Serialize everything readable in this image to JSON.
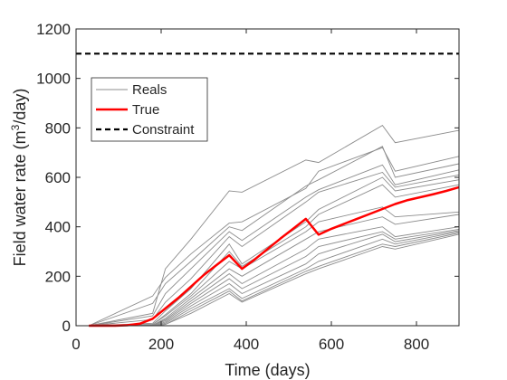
{
  "chart_data": {
    "type": "line",
    "xlabel": "Time (days)",
    "ylabel": {
      "prefix": "Field water rate (m",
      "superscript": "3",
      "suffix": "/day)"
    },
    "xlim": [
      0,
      900
    ],
    "ylim": [
      0,
      1200
    ],
    "xticks": [
      0,
      200,
      400,
      600,
      800
    ],
    "yticks": [
      0,
      200,
      400,
      600,
      800,
      1000,
      1200
    ],
    "grid": false,
    "legend": {
      "position": "top-left",
      "entries": [
        {
          "name": "Reals",
          "color": "#8c8c8c",
          "style": "solid"
        },
        {
          "name": "True",
          "color": "#ff0000",
          "style": "solid"
        },
        {
          "name": "Constraint",
          "color": "#000000",
          "style": "dashed"
        }
      ]
    },
    "constraint": {
      "name": "Constraint",
      "y": 1100,
      "color": "#000000"
    },
    "true_series": {
      "name": "True",
      "color": "#ff0000",
      "x": [
        30,
        60,
        90,
        120,
        150,
        180,
        210,
        240,
        270,
        300,
        330,
        360,
        390,
        420,
        450,
        480,
        510,
        540,
        570,
        600,
        630,
        660,
        690,
        720,
        750,
        780,
        810,
        840,
        870,
        900
      ],
      "y": [
        0,
        0,
        0,
        2,
        8,
        28,
        70,
        112,
        158,
        205,
        245,
        285,
        230,
        268,
        310,
        352,
        392,
        432,
        368,
        392,
        412,
        432,
        452,
        472,
        492,
        508,
        520,
        532,
        545,
        560
      ]
    },
    "reals_color": "#8c8c8c",
    "reals": [
      {
        "x": [
          30,
          180,
          210,
          270,
          360,
          390,
          540,
          570,
          720,
          750,
          900
        ],
        "y": [
          0,
          50,
          230,
          350,
          545,
          540,
          670,
          660,
          810,
          740,
          790
        ]
      },
      {
        "x": [
          30,
          180,
          210,
          270,
          360,
          390,
          540,
          570,
          720,
          750,
          900
        ],
        "y": [
          0,
          120,
          195,
          290,
          415,
          420,
          555,
          625,
          720,
          625,
          685
        ]
      },
      {
        "x": [
          30,
          180,
          210,
          270,
          360,
          390,
          540,
          570,
          720,
          750,
          900
        ],
        "y": [
          0,
          90,
          170,
          260,
          400,
          385,
          565,
          590,
          725,
          600,
          655
        ]
      },
      {
        "x": [
          30,
          180,
          210,
          270,
          360,
          390,
          540,
          570,
          720,
          750,
          900
        ],
        "y": [
          0,
          40,
          130,
          230,
          380,
          345,
          520,
          550,
          650,
          570,
          630
        ]
      },
      {
        "x": [
          30,
          180,
          210,
          270,
          360,
          390,
          540,
          570,
          720,
          750,
          900
        ],
        "y": [
          0,
          25,
          95,
          190,
          360,
          320,
          500,
          540,
          620,
          560,
          610
        ]
      },
      {
        "x": [
          30,
          180,
          210,
          270,
          360,
          390,
          540,
          570,
          720,
          750,
          900
        ],
        "y": [
          0,
          10,
          60,
          150,
          330,
          250,
          420,
          470,
          600,
          545,
          590
        ]
      },
      {
        "x": [
          30,
          180,
          210,
          270,
          360,
          390,
          540,
          570,
          720,
          750,
          900
        ],
        "y": [
          0,
          5,
          45,
          130,
          300,
          240,
          400,
          450,
          570,
          520,
          570
        ]
      },
      {
        "x": [
          30,
          180,
          210,
          270,
          360,
          390,
          540,
          570,
          720,
          750,
          900
        ],
        "y": [
          0,
          5,
          40,
          120,
          260,
          230,
          380,
          420,
          480,
          440,
          460
        ]
      },
      {
        "x": [
          30,
          180,
          210,
          270,
          360,
          390,
          540,
          570,
          720,
          750,
          900
        ],
        "y": [
          0,
          2,
          30,
          110,
          230,
          200,
          350,
          380,
          440,
          410,
          450
        ]
      },
      {
        "x": [
          30,
          180,
          210,
          270,
          360,
          390,
          540,
          570,
          720,
          750,
          900
        ],
        "y": [
          0,
          2,
          25,
          100,
          210,
          170,
          310,
          350,
          400,
          360,
          400
        ]
      },
      {
        "x": [
          30,
          180,
          210,
          270,
          360,
          390,
          540,
          570,
          720,
          750,
          900
        ],
        "y": [
          0,
          1,
          20,
          90,
          190,
          150,
          280,
          320,
          380,
          350,
          390
        ]
      },
      {
        "x": [
          30,
          180,
          210,
          270,
          360,
          390,
          540,
          570,
          720,
          750,
          900
        ],
        "y": [
          0,
          0,
          15,
          80,
          170,
          130,
          250,
          290,
          370,
          340,
          385
        ]
      },
      {
        "x": [
          30,
          180,
          210,
          270,
          360,
          390,
          540,
          570,
          720,
          750,
          900
        ],
        "y": [
          0,
          0,
          10,
          70,
          150,
          110,
          230,
          260,
          350,
          330,
          380
        ]
      },
      {
        "x": [
          30,
          180,
          210,
          270,
          360,
          390,
          540,
          570,
          720,
          750,
          900
        ],
        "y": [
          0,
          0,
          5,
          60,
          140,
          100,
          220,
          240,
          330,
          320,
          375
        ]
      },
      {
        "x": [
          30,
          180,
          210,
          270,
          360,
          390,
          540,
          570,
          720,
          750,
          900
        ],
        "y": [
          0,
          0,
          5,
          50,
          130,
          95,
          210,
          230,
          320,
          310,
          370
        ]
      }
    ]
  }
}
